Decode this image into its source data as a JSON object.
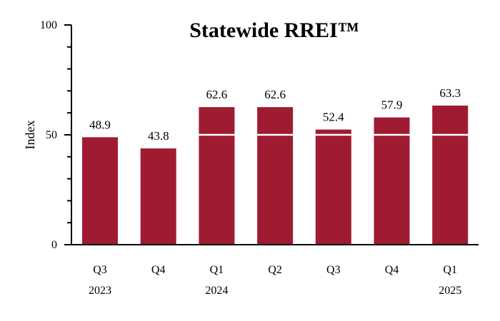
{
  "chart_data": {
    "type": "bar",
    "title": "Statewide RREI™",
    "ylabel": "Index",
    "xlabel": "",
    "ylim": [
      0,
      100
    ],
    "yticks_labeled": [
      0,
      50,
      100
    ],
    "yticks_minor_step": 10,
    "reference_line": 50,
    "categories": [
      "Q3",
      "Q4",
      "Q1",
      "Q2",
      "Q3",
      "Q4",
      "Q1"
    ],
    "category_years": [
      "2023",
      "",
      "2024",
      "",
      "",
      "",
      "2025"
    ],
    "values": [
      48.9,
      43.8,
      62.6,
      62.6,
      52.4,
      57.9,
      63.3
    ],
    "data_labels": [
      "48.9",
      "43.8",
      "62.6",
      "62.6",
      "52.4",
      "57.9",
      "63.3"
    ],
    "bar_color": "#9e1b32",
    "reference_line_color": "#ffffff",
    "grid": false,
    "legend": "none"
  }
}
